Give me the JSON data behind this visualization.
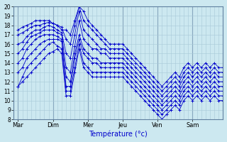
{
  "xlabel": "Température (°c)",
  "bg_color": "#cce8f0",
  "grid_color": "#a8c8d8",
  "line_color": "#0000cc",
  "marker": "+",
  "ylim": [
    8,
    20
  ],
  "yticks": [
    8,
    9,
    10,
    11,
    12,
    13,
    14,
    15,
    16,
    17,
    18,
    19,
    20
  ],
  "day_labels": [
    "Mar",
    "Dim",
    "Mer",
    "Jeu",
    "Ven",
    "Sam"
  ],
  "day_positions": [
    0,
    8,
    16,
    24,
    32,
    40
  ],
  "total_points": 48,
  "series": [
    [
      11.5,
      12.0,
      12.5,
      13.0,
      13.5,
      14.0,
      14.5,
      15.0,
      15.2,
      15.5,
      15.0,
      10.5,
      10.5,
      13.0,
      15.5,
      13.5,
      13.0,
      12.5,
      12.5,
      12.5,
      12.5,
      12.5,
      12.5,
      12.5,
      12.5,
      12.0,
      11.5,
      11.0,
      10.5,
      10.0,
      9.5,
      9.0,
      8.5,
      8.0,
      8.5,
      9.0,
      9.5,
      9.0,
      10.0,
      10.5,
      10.0,
      10.5,
      10.0,
      10.5,
      10.0,
      10.5,
      10.0,
      10.0
    ],
    [
      11.5,
      12.5,
      13.5,
      14.0,
      14.5,
      15.0,
      15.5,
      16.0,
      16.2,
      15.8,
      15.5,
      11.0,
      11.0,
      13.5,
      16.0,
      14.0,
      13.5,
      13.0,
      13.0,
      13.0,
      13.0,
      13.0,
      13.0,
      13.0,
      13.0,
      12.5,
      12.0,
      11.5,
      11.0,
      10.5,
      10.0,
      9.5,
      9.0,
      8.5,
      9.0,
      9.5,
      10.0,
      9.5,
      10.5,
      11.0,
      10.5,
      11.0,
      10.5,
      11.0,
      10.5,
      11.0,
      10.5,
      10.5
    ],
    [
      13.0,
      13.5,
      14.5,
      15.0,
      15.5,
      16.0,
      16.3,
      16.5,
      16.5,
      16.5,
      16.3,
      11.5,
      11.5,
      14.5,
      16.5,
      15.0,
      14.5,
      14.0,
      14.0,
      13.5,
      13.5,
      13.5,
      13.5,
      13.5,
      13.5,
      13.0,
      12.5,
      12.0,
      11.5,
      11.0,
      10.5,
      10.0,
      9.5,
      9.0,
      9.5,
      10.0,
      10.5,
      10.0,
      11.0,
      11.5,
      11.0,
      11.5,
      11.0,
      11.5,
      11.0,
      11.5,
      11.0,
      11.0
    ],
    [
      14.0,
      14.5,
      15.5,
      16.0,
      16.5,
      16.8,
      17.0,
      17.0,
      17.0,
      16.8,
      16.5,
      12.5,
      12.0,
      15.0,
      17.0,
      15.5,
      15.0,
      14.5,
      14.5,
      14.0,
      14.0,
      14.0,
      14.0,
      14.0,
      14.0,
      13.5,
      13.0,
      12.5,
      12.0,
      11.5,
      11.0,
      10.5,
      10.0,
      9.5,
      10.0,
      10.5,
      11.0,
      10.5,
      11.5,
      12.0,
      11.5,
      12.0,
      11.5,
      12.0,
      11.5,
      12.0,
      11.5,
      11.5
    ],
    [
      15.0,
      15.5,
      16.2,
      16.8,
      17.0,
      17.2,
      17.5,
      17.5,
      17.5,
      17.2,
      17.0,
      13.5,
      13.0,
      15.8,
      18.5,
      16.5,
      16.0,
      15.5,
      15.5,
      15.0,
      15.0,
      14.5,
      14.5,
      14.5,
      14.5,
      14.0,
      13.5,
      13.0,
      12.5,
      12.0,
      11.5,
      11.0,
      10.5,
      10.0,
      10.5,
      11.0,
      11.5,
      11.0,
      12.0,
      12.5,
      12.0,
      12.5,
      12.0,
      12.5,
      12.0,
      12.5,
      12.0,
      12.0
    ],
    [
      16.0,
      16.2,
      16.8,
      17.2,
      17.5,
      17.5,
      17.8,
      18.0,
      17.8,
      17.5,
      17.2,
      15.0,
      14.5,
      17.0,
      19.5,
      17.5,
      17.0,
      16.5,
      16.0,
      15.5,
      15.5,
      15.0,
      15.0,
      15.0,
      15.0,
      14.5,
      14.0,
      13.5,
      13.0,
      12.5,
      12.0,
      11.5,
      11.0,
      10.5,
      11.0,
      11.5,
      12.0,
      11.5,
      12.5,
      13.0,
      12.5,
      13.0,
      12.5,
      13.0,
      12.5,
      13.0,
      12.5,
      12.5
    ],
    [
      17.0,
      17.2,
      17.5,
      17.8,
      18.0,
      18.0,
      18.2,
      18.3,
      18.2,
      18.0,
      17.8,
      16.5,
      16.0,
      18.0,
      20.0,
      18.5,
      18.0,
      17.5,
      17.0,
      16.5,
      16.0,
      15.5,
      15.5,
      15.5,
      15.5,
      15.0,
      14.5,
      14.0,
      13.5,
      13.0,
      12.5,
      12.0,
      11.5,
      11.0,
      11.5,
      12.0,
      12.5,
      12.0,
      13.0,
      13.5,
      13.0,
      13.5,
      13.0,
      13.5,
      13.0,
      13.5,
      13.0,
      13.0
    ],
    [
      17.5,
      17.8,
      18.0,
      18.2,
      18.5,
      18.5,
      18.5,
      18.5,
      18.2,
      18.0,
      17.5,
      17.5,
      17.0,
      18.5,
      20.0,
      19.5,
      18.5,
      18.0,
      17.5,
      17.0,
      16.5,
      16.0,
      16.0,
      16.0,
      16.0,
      15.5,
      15.0,
      14.5,
      14.0,
      13.5,
      13.0,
      12.5,
      12.0,
      11.5,
      12.0,
      12.5,
      13.0,
      12.5,
      13.5,
      14.0,
      13.5,
      14.0,
      13.5,
      14.0,
      13.5,
      14.0,
      13.5,
      13.5
    ]
  ]
}
